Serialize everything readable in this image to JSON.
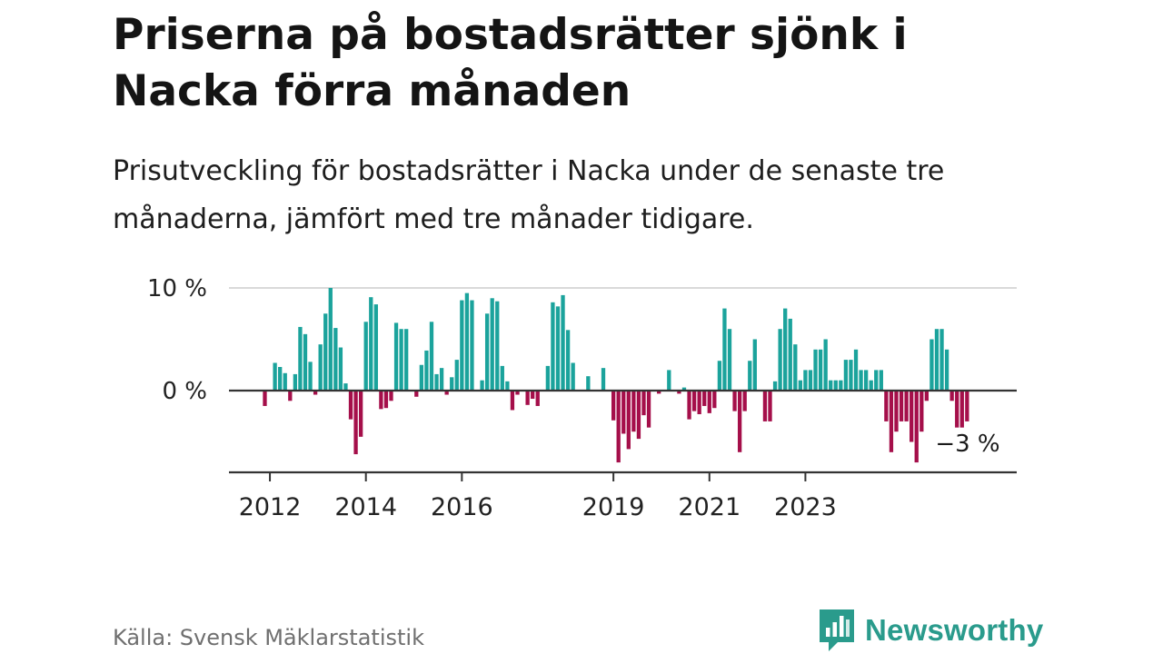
{
  "title": "Priserna på bostadsrätter sjönk i Nacka förra månaden",
  "subtitle": "Prisutveckling för bostadsrätter i Nacka under de senaste tre månaderna, jämfört med tre månader tidigare.",
  "source": "Källa: Svensk Mäklarstatistik",
  "brand": "Newsworthy",
  "colors": {
    "positive": "#1ba39c",
    "negative": "#a50f4a",
    "brand": "#2a9b8c",
    "gridline": "#d9d9d9",
    "axis": "#333333"
  },
  "chart_data": {
    "type": "bar",
    "title": "",
    "xlabel": "",
    "ylabel": "",
    "ylim": [
      -8,
      10
    ],
    "y_ticks": [
      {
        "value": 10,
        "label": "10 %"
      },
      {
        "value": 0,
        "label": "0 %"
      }
    ],
    "x_ticks": [
      {
        "index": 1,
        "label": "2012"
      },
      {
        "index": 20,
        "label": "2014"
      },
      {
        "index": 39,
        "label": "2016"
      },
      {
        "index": 69,
        "label": "2019"
      },
      {
        "index": 88,
        "label": "2021"
      },
      {
        "index": 107,
        "label": "2023"
      }
    ],
    "values": [
      -1.5,
      0,
      2.7,
      2.3,
      1.7,
      -1.0,
      1.6,
      6.2,
      5.5,
      2.8,
      -0.4,
      4.5,
      7.5,
      10,
      6.1,
      4.2,
      0.7,
      -2.8,
      -6.2,
      -4.5,
      6.7,
      9.1,
      8.4,
      -1.8,
      -1.7,
      -1.0,
      6.6,
      6.0,
      6.0,
      0,
      -0.6,
      2.5,
      3.9,
      6.7,
      1.6,
      2.2,
      -0.4,
      1.3,
      3.0,
      8.8,
      9.5,
      8.8,
      0,
      1.0,
      7.5,
      9.0,
      8.7,
      2.4,
      0.9,
      -1.9,
      -0.4,
      0,
      -1.4,
      -0.8,
      -1.5,
      0,
      2.4,
      8.6,
      8.2,
      9.3,
      5.9,
      2.7,
      0,
      0,
      1.4,
      0,
      0,
      2.2,
      0,
      -2.9,
      -7.0,
      -4.2,
      -5.7,
      -4.0,
      -4.7,
      -2.4,
      -3.6,
      0,
      -0.3,
      0,
      2.0,
      0,
      -0.3,
      0.3,
      -2.8,
      -2.0,
      -2.3,
      -1.5,
      -2.2,
      -1.7,
      2.9,
      8.0,
      6.0,
      -2.0,
      -6.0,
      -2.0,
      2.9,
      5.0,
      0,
      -3.0,
      -3.0,
      0.9,
      6.0,
      8.0,
      7.0,
      4.5,
      1.0,
      2.0,
      2.0,
      4.0,
      4.0,
      5.0,
      1.0,
      1.0,
      1.0,
      3.0,
      3.0,
      4.0,
      2.0,
      2.0,
      1.0,
      2.0,
      2.0,
      -3.0,
      -6.0,
      -4.0,
      -3.0,
      -3.0,
      -5.0,
      -7.0,
      -4.0,
      -1.0,
      5.0,
      6.0,
      6.0,
      4.0,
      -1.0,
      -3.6,
      -3.6,
      -3.0
    ],
    "annotation": {
      "index": 139,
      "label": "−3 %"
    }
  }
}
